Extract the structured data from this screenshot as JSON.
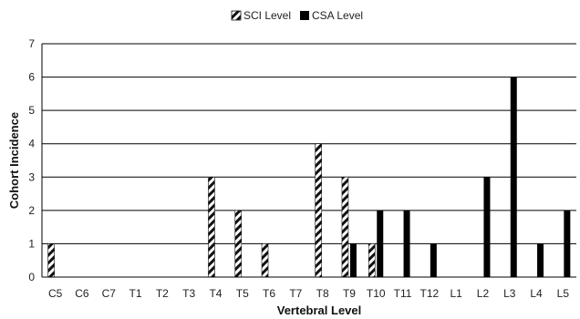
{
  "chart_data": {
    "type": "bar",
    "xlabel": "Vertebral Level",
    "ylabel": "Cohort Incidence",
    "ylim": [
      0,
      7
    ],
    "yticks": [
      0,
      1,
      2,
      3,
      4,
      5,
      6,
      7
    ],
    "grid": "horizontal",
    "legend_position": "top-center",
    "categories": [
      "C5",
      "C6",
      "C7",
      "T1",
      "T2",
      "T3",
      "T4",
      "T5",
      "T6",
      "T7",
      "T8",
      "T9",
      "T10",
      "T11",
      "T12",
      "L1",
      "L2",
      "L3",
      "L4",
      "L5"
    ],
    "series": [
      {
        "name": "SCI Level",
        "pattern": "diagonal-hatch",
        "values": [
          1,
          0,
          0,
          0,
          0,
          0,
          3,
          2,
          1,
          0,
          4,
          3,
          1,
          0,
          0,
          0,
          0,
          0,
          0,
          0
        ]
      },
      {
        "name": "CSA Level",
        "color": "#000000",
        "values": [
          0,
          0,
          0,
          0,
          0,
          0,
          0,
          0,
          0,
          0,
          0,
          1,
          2,
          2,
          1,
          0,
          3,
          6,
          1,
          2
        ]
      }
    ]
  }
}
